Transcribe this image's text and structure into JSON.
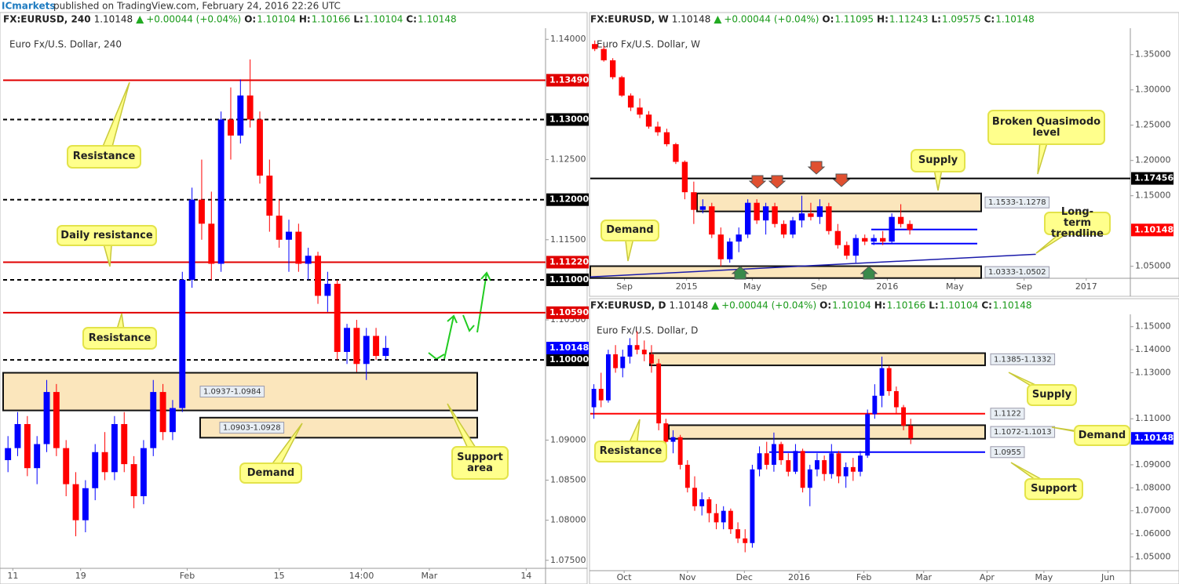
{
  "header": {
    "brand": "ICmarkets",
    "text": "published on TradingView.com, February 24, 2016 22:26 UTC"
  },
  "chart_data": [
    {
      "type": "candlestick",
      "symbol": "FX:EURUSD, 240",
      "title": "Euro Fx/U.S. Dollar, 240",
      "quote": {
        "last": "1.10148",
        "change": "+0.00044 (+0.04%)",
        "fields": [
          {
            "label": "O:",
            "value": "1.10104"
          },
          {
            "label": "H:",
            "value": "1.10166"
          },
          {
            "label": "L:",
            "value": "1.10104"
          },
          {
            "label": "C:",
            "value": "1.10148"
          }
        ]
      },
      "up_color": "#0000ff",
      "down_color": "#ff0000",
      "xlim": [
        0,
        56
      ],
      "xticks": [
        {
          "value": 1,
          "label": "11"
        },
        {
          "value": 8,
          "label": "19"
        },
        {
          "value": 19,
          "label": "Feb"
        },
        {
          "value": 28.5,
          "label": "15"
        },
        {
          "value": 37,
          "label": "14:00"
        },
        {
          "value": 44,
          "label": "Mar"
        },
        {
          "value": 54,
          "label": "14"
        }
      ],
      "ylim": [
        1.074,
        1.141
      ],
      "yticks": [
        {
          "value": 1.14,
          "label": "1.14000"
        },
        {
          "value": 1.125,
          "label": "1.12500"
        },
        {
          "value": 1.115,
          "label": "1.11500"
        },
        {
          "value": 1.105,
          "label": "1.10500"
        },
        {
          "value": 1.09,
          "label": "1.09000"
        },
        {
          "value": 1.085,
          "label": "1.08500"
        },
        {
          "value": 1.08,
          "label": "1.08000"
        },
        {
          "value": 1.075,
          "label": "1.07500"
        }
      ],
      "ohlc": [
        [
          1.0875,
          1.0905,
          1.086,
          1.089
        ],
        [
          1.089,
          1.0935,
          1.088,
          1.092
        ],
        [
          1.092,
          1.093,
          1.0855,
          1.0865
        ],
        [
          1.0865,
          1.0905,
          1.0845,
          1.0895
        ],
        [
          1.0895,
          1.0975,
          1.0885,
          1.096
        ],
        [
          1.096,
          1.097,
          1.088,
          1.089
        ],
        [
          1.089,
          1.09,
          1.083,
          1.0845
        ],
        [
          1.0845,
          1.086,
          1.078,
          1.08
        ],
        [
          1.08,
          1.085,
          1.0785,
          1.084
        ],
        [
          1.084,
          1.0895,
          1.0825,
          1.0885
        ],
        [
          1.0885,
          1.091,
          1.085,
          1.086
        ],
        [
          1.086,
          1.093,
          1.085,
          1.092
        ],
        [
          1.092,
          1.0935,
          1.086,
          1.087
        ],
        [
          1.087,
          1.088,
          1.0815,
          1.083
        ],
        [
          1.083,
          1.09,
          1.082,
          1.089
        ],
        [
          1.089,
          1.0975,
          1.088,
          1.096
        ],
        [
          1.096,
          1.097,
          1.09,
          1.091
        ],
        [
          1.091,
          1.095,
          1.09,
          1.094
        ],
        [
          1.094,
          1.111,
          1.0935,
          1.11
        ],
        [
          1.11,
          1.1215,
          1.109,
          1.12
        ],
        [
          1.12,
          1.125,
          1.115,
          1.117
        ],
        [
          1.117,
          1.121,
          1.11,
          1.112
        ],
        [
          1.112,
          1.131,
          1.111,
          1.13
        ],
        [
          1.13,
          1.134,
          1.125,
          1.128
        ],
        [
          1.128,
          1.135,
          1.127,
          1.133
        ],
        [
          1.133,
          1.1375,
          1.129,
          1.13
        ],
        [
          1.13,
          1.131,
          1.122,
          1.123
        ],
        [
          1.123,
          1.125,
          1.116,
          1.118
        ],
        [
          1.118,
          1.12,
          1.114,
          1.115
        ],
        [
          1.115,
          1.1175,
          1.111,
          1.116
        ],
        [
          1.116,
          1.117,
          1.111,
          1.112
        ],
        [
          1.112,
          1.114,
          1.11,
          1.113
        ],
        [
          1.113,
          1.1135,
          1.107,
          1.108
        ],
        [
          1.108,
          1.111,
          1.106,
          1.1095
        ],
        [
          1.1095,
          1.11,
          1.1,
          1.101
        ],
        [
          1.101,
          1.1045,
          1.0995,
          1.104
        ],
        [
          1.104,
          1.105,
          1.0985,
          1.0995
        ],
        [
          1.0995,
          1.104,
          1.0975,
          1.103
        ],
        [
          1.103,
          1.104,
          1.1,
          1.1005
        ],
        [
          1.1005,
          1.103,
          1.1,
          1.1015
        ]
      ],
      "levels": [
        {
          "value": 1.1349,
          "label": "1.13490",
          "color": "#e00000",
          "style": "solid"
        },
        {
          "value": 1.13,
          "label": "1.13000",
          "color": "#000000",
          "style": "dashed"
        },
        {
          "value": 1.12,
          "label": "1.12000",
          "color": "#000000",
          "style": "dashed"
        },
        {
          "value": 1.1122,
          "label": "1.11220",
          "color": "#e00000",
          "style": "solid"
        },
        {
          "value": 1.11,
          "label": "1.11000",
          "color": "#000000",
          "style": "dashed"
        },
        {
          "value": 1.1059,
          "label": "1.10590",
          "color": "#e00000",
          "style": "solid"
        },
        {
          "value": 1.1,
          "label": "1.10000",
          "color": "#000000",
          "style": "dashed"
        }
      ],
      "zones": [
        {
          "low": 1.0937,
          "high": 1.0984,
          "label": "1.0937-1.0984"
        },
        {
          "low": 1.0903,
          "high": 1.0928,
          "label": "1.0903-1.0928"
        }
      ],
      "last": {
        "value": 1.10148,
        "label": "1.10148",
        "color": "#0000ff"
      },
      "callouts": [
        "Resistance",
        "Daily resistance",
        "Resistance",
        "Demand",
        "Support area"
      ]
    },
    {
      "type": "candlestick",
      "symbol": "FX:EURUSD, W",
      "title": "Euro Fx/U.S. Dollar, W",
      "quote": {
        "last": "1.10148",
        "change": "+0.00044 (+0.04%)",
        "fields": [
          {
            "label": "O:",
            "value": "1.11095"
          },
          {
            "label": "H:",
            "value": "1.11243"
          },
          {
            "label": "L:",
            "value": "1.09575"
          },
          {
            "label": "C:",
            "value": "1.10148"
          }
        ]
      },
      "up_color": "#0000ff",
      "down_color": "#ff0000",
      "xlim": [
        0,
        60
      ],
      "xticks": [
        {
          "value": 3.8,
          "label": "Sep"
        },
        {
          "value": 10.7,
          "label": "2015"
        },
        {
          "value": 18,
          "label": "May"
        },
        {
          "value": 25.4,
          "label": "Sep"
        },
        {
          "value": 33,
          "label": "2016"
        },
        {
          "value": 40.5,
          "label": "May"
        },
        {
          "value": 48.2,
          "label": "Sep"
        },
        {
          "value": 55.1,
          "label": "2017"
        }
      ],
      "ylim": [
        1.033,
        1.383
      ],
      "yticks": [
        {
          "value": 1.35,
          "label": "1.35000"
        },
        {
          "value": 1.3,
          "label": "1.30000"
        },
        {
          "value": 1.25,
          "label": "1.25000"
        },
        {
          "value": 1.2,
          "label": "1.20000"
        },
        {
          "value": 1.15,
          "label": "1.15000"
        },
        {
          "value": 1.05,
          "label": "1.05000"
        }
      ],
      "ohlc": [
        [
          1.365,
          1.37,
          1.355,
          1.358
        ],
        [
          1.358,
          1.362,
          1.34,
          1.342
        ],
        [
          1.342,
          1.345,
          1.315,
          1.318
        ],
        [
          1.318,
          1.32,
          1.29,
          1.292
        ],
        [
          1.292,
          1.295,
          1.27,
          1.275
        ],
        [
          1.275,
          1.288,
          1.26,
          1.265
        ],
        [
          1.265,
          1.27,
          1.245,
          1.248
        ],
        [
          1.248,
          1.255,
          1.235,
          1.24
        ],
        [
          1.24,
          1.245,
          1.22,
          1.223
        ],
        [
          1.223,
          1.225,
          1.195,
          1.198
        ],
        [
          1.198,
          1.2,
          1.145,
          1.155
        ],
        [
          1.155,
          1.17,
          1.11,
          1.13
        ],
        [
          1.13,
          1.145,
          1.125,
          1.135
        ],
        [
          1.135,
          1.14,
          1.09,
          1.095
        ],
        [
          1.095,
          1.105,
          1.05,
          1.06
        ],
        [
          1.06,
          1.09,
          1.055,
          1.085
        ],
        [
          1.085,
          1.105,
          1.07,
          1.095
        ],
        [
          1.095,
          1.145,
          1.09,
          1.14
        ],
        [
          1.14,
          1.145,
          1.11,
          1.115
        ],
        [
          1.115,
          1.14,
          1.095,
          1.135
        ],
        [
          1.135,
          1.14,
          1.105,
          1.11
        ],
        [
          1.11,
          1.115,
          1.09,
          1.095
        ],
        [
          1.095,
          1.12,
          1.09,
          1.115
        ],
        [
          1.115,
          1.15,
          1.105,
          1.125
        ],
        [
          1.125,
          1.14,
          1.115,
          1.12
        ],
        [
          1.12,
          1.145,
          1.11,
          1.135
        ],
        [
          1.135,
          1.14,
          1.095,
          1.1
        ],
        [
          1.1,
          1.11,
          1.075,
          1.08
        ],
        [
          1.08,
          1.085,
          1.06,
          1.065
        ],
        [
          1.065,
          1.095,
          1.055,
          1.09
        ],
        [
          1.09,
          1.095,
          1.08,
          1.085
        ],
        [
          1.085,
          1.095,
          1.08,
          1.09
        ],
        [
          1.09,
          1.1,
          1.08,
          1.085
        ],
        [
          1.085,
          1.125,
          1.083,
          1.12
        ],
        [
          1.12,
          1.138,
          1.105,
          1.11
        ],
        [
          1.11,
          1.115,
          1.095,
          1.1015
        ]
      ],
      "levels": [
        {
          "value": 1.17456,
          "label": "1.17456",
          "color": "#000000",
          "style": "solid"
        },
        {
          "value": 1.1022,
          "color": "#0000ff",
          "style": "solid"
        },
        {
          "value": 1.0822,
          "color": "#0000ff",
          "style": "solid"
        }
      ],
      "zones": [
        {
          "low": 1.1278,
          "high": 1.1533,
          "label": "1.1533-1.1278"
        },
        {
          "low": 1.0333,
          "high": 1.0502,
          "label": "1.0333-1.0502"
        }
      ],
      "trendline": {
        "x": [
          0,
          49.5
        ],
        "y": [
          1.035,
          1.067
        ]
      },
      "last": {
        "value": 1.10148,
        "label": "1.10148",
        "color": "#ff0000"
      },
      "callouts": [
        "Broken Quasimodo level",
        "Supply",
        "Demand",
        "Long-term trendline"
      ]
    },
    {
      "type": "candlestick",
      "symbol": "FX:EURUSD, D",
      "title": "Euro Fx/U.S. Dollar, D",
      "quote": {
        "last": "1.10148",
        "change": "+0.00044 (+0.04%)",
        "fields": [
          {
            "label": "O:",
            "value": "1.10104"
          },
          {
            "label": "H:",
            "value": "1.10166"
          },
          {
            "label": "L:",
            "value": "1.10104"
          },
          {
            "label": "C:",
            "value": "1.10148"
          }
        ]
      },
      "up_color": "#0000ff",
      "down_color": "#ff0000",
      "xlim": [
        0,
        75
      ],
      "xticks": [
        {
          "value": 4.7,
          "label": "Oct"
        },
        {
          "value": 13.5,
          "label": "Nov"
        },
        {
          "value": 21.4,
          "label": "Dec"
        },
        {
          "value": 29,
          "label": "2016"
        },
        {
          "value": 38,
          "label": "Feb"
        },
        {
          "value": 46.3,
          "label": "Mar"
        },
        {
          "value": 55.1,
          "label": "Apr"
        },
        {
          "value": 63,
          "label": "May"
        },
        {
          "value": 71.9,
          "label": "Jun"
        }
      ],
      "ylim": [
        1.044,
        1.154
      ],
      "yticks": [
        {
          "value": 1.15,
          "label": "1.15000"
        },
        {
          "value": 1.14,
          "label": "1.14000"
        },
        {
          "value": 1.13,
          "label": "1.13000"
        },
        {
          "value": 1.11,
          "label": "1.11000"
        },
        {
          "value": 1.09,
          "label": "1.09000"
        },
        {
          "value": 1.08,
          "label": "1.08000"
        },
        {
          "value": 1.07,
          "label": "1.07000"
        },
        {
          "value": 1.06,
          "label": "1.06000"
        },
        {
          "value": 1.05,
          "label": "1.05000"
        }
      ],
      "ohlc": [
        [
          1.115,
          1.125,
          1.11,
          1.123
        ],
        [
          1.123,
          1.13,
          1.115,
          1.118
        ],
        [
          1.118,
          1.14,
          1.117,
          1.138
        ],
        [
          1.138,
          1.142,
          1.13,
          1.132
        ],
        [
          1.132,
          1.14,
          1.128,
          1.137
        ],
        [
          1.137,
          1.145,
          1.134,
          1.142
        ],
        [
          1.142,
          1.148,
          1.138,
          1.14
        ],
        [
          1.14,
          1.144,
          1.135,
          1.138
        ],
        [
          1.138,
          1.142,
          1.13,
          1.134
        ],
        [
          1.134,
          1.136,
          1.105,
          1.108
        ],
        [
          1.108,
          1.11,
          1.095,
          1.1
        ],
        [
          1.1,
          1.105,
          1.095,
          1.102
        ],
        [
          1.102,
          1.103,
          1.088,
          1.09
        ],
        [
          1.09,
          1.092,
          1.078,
          1.08
        ],
        [
          1.08,
          1.085,
          1.07,
          1.072
        ],
        [
          1.072,
          1.078,
          1.068,
          1.075
        ],
        [
          1.075,
          1.076,
          1.065,
          1.069
        ],
        [
          1.069,
          1.073,
          1.062,
          1.065
        ],
        [
          1.065,
          1.072,
          1.062,
          1.07
        ],
        [
          1.07,
          1.071,
          1.06,
          1.062
        ],
        [
          1.062,
          1.065,
          1.056,
          1.058
        ],
        [
          1.058,
          1.062,
          1.052,
          1.056
        ],
        [
          1.056,
          1.09,
          1.054,
          1.088
        ],
        [
          1.088,
          1.098,
          1.085,
          1.095
        ],
        [
          1.095,
          1.1,
          1.088,
          1.09
        ],
        [
          1.09,
          1.104,
          1.087,
          1.099
        ],
        [
          1.099,
          1.1,
          1.09,
          1.092
        ],
        [
          1.092,
          1.095,
          1.085,
          1.087
        ],
        [
          1.087,
          1.099,
          1.086,
          1.096
        ],
        [
          1.096,
          1.097,
          1.078,
          1.08
        ],
        [
          1.08,
          1.09,
          1.072,
          1.088
        ],
        [
          1.088,
          1.095,
          1.085,
          1.092
        ],
        [
          1.092,
          1.094,
          1.083,
          1.086
        ],
        [
          1.086,
          1.099,
          1.084,
          1.095
        ],
        [
          1.095,
          1.096,
          1.082,
          1.085
        ],
        [
          1.085,
          1.091,
          1.08,
          1.089
        ],
        [
          1.089,
          1.093,
          1.083,
          1.087
        ],
        [
          1.087,
          1.096,
          1.085,
          1.094
        ],
        [
          1.094,
          1.114,
          1.093,
          1.112
        ],
        [
          1.112,
          1.125,
          1.11,
          1.12
        ],
        [
          1.12,
          1.137,
          1.115,
          1.132
        ],
        [
          1.132,
          1.133,
          1.12,
          1.122
        ],
        [
          1.122,
          1.124,
          1.112,
          1.115
        ],
        [
          1.115,
          1.116,
          1.105,
          1.107
        ],
        [
          1.107,
          1.11,
          1.099,
          1.1015
        ]
      ],
      "levels": [
        {
          "value": 1.1122,
          "label": "1.1122",
          "color": "#ff0000",
          "style": "solid"
        },
        {
          "value": 1.0955,
          "label": "1.0955",
          "color": "#0000ff",
          "style": "solid"
        }
      ],
      "zones": [
        {
          "low": 1.1332,
          "high": 1.1385,
          "label": "1.1385-1.1332"
        },
        {
          "low": 1.1013,
          "high": 1.1072,
          "label": "1.1072-1.1013"
        }
      ],
      "last": {
        "value": 1.10148,
        "label": "1.10148",
        "color": "#0000ff"
      },
      "callouts": [
        "Supply",
        "Demand",
        "Resistance",
        "Support"
      ]
    }
  ]
}
